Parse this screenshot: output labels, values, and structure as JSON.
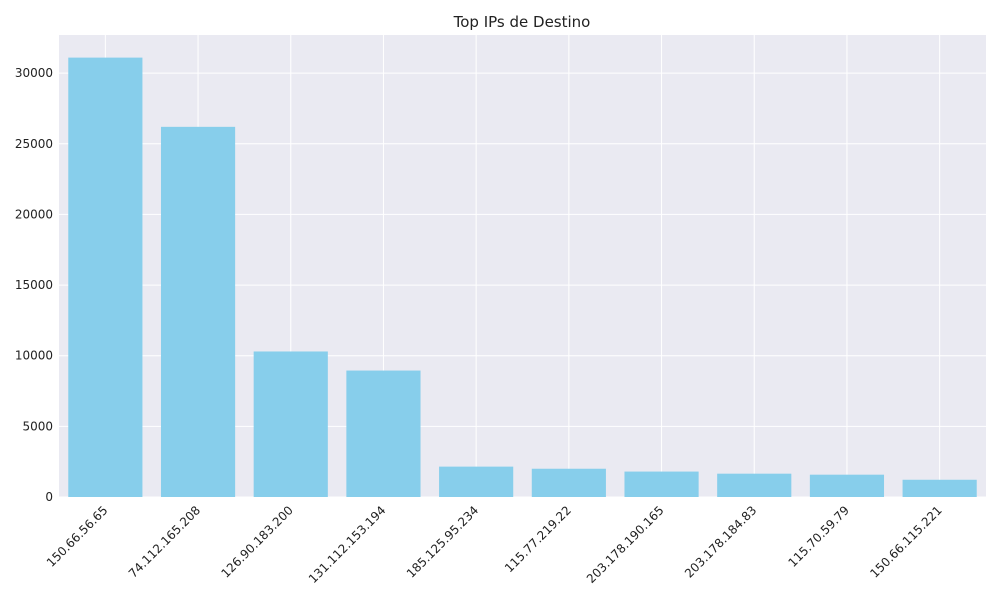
{
  "chart_data": {
    "type": "bar",
    "title": "Top IPs de Destino",
    "xlabel": "",
    "ylabel": "",
    "categories": [
      "150.66.56.65",
      "74.112.165.208",
      "126.90.183.200",
      "131.112.153.194",
      "185.125.95.234",
      "115.77.219.22",
      "203.178.190.165",
      "203.178.184.83",
      "115.70.59.79",
      "150.66.115.221"
    ],
    "values": [
      31100,
      26200,
      10300,
      8950,
      2150,
      2000,
      1800,
      1650,
      1580,
      1220
    ],
    "ylim": [
      0,
      32700
    ],
    "yticks": [
      0,
      5000,
      10000,
      15000,
      20000,
      25000,
      30000
    ],
    "grid": true,
    "colors": {
      "bar": "#87ceeb",
      "plot_background": "#eaeaf2",
      "grid": "#ffffff"
    }
  }
}
